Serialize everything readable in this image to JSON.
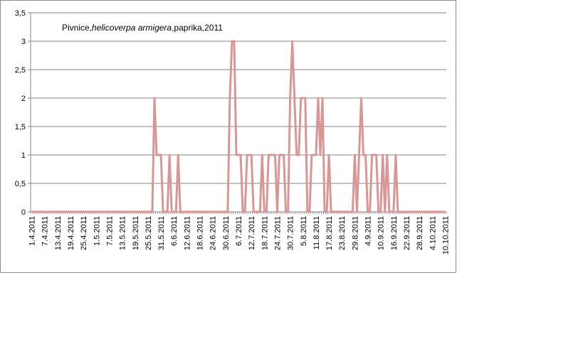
{
  "chart_data": {
    "type": "line",
    "title_parts": [
      "Pivnice,",
      "helicoverpa armigera",
      ",paprika,2011"
    ],
    "xlabel": "",
    "ylabel": "",
    "ylim": [
      0,
      3.5
    ],
    "y_ticks": [
      "0",
      "0,5",
      "1",
      "1,5",
      "2",
      "2,5",
      "3",
      "3,5"
    ],
    "x_tick_labels": [
      "1.4.2011",
      "7.4.2011",
      "13.4.2011",
      "19.4.2011",
      "25.4.2011",
      "1.5.2011",
      "7.5.2011",
      "13.5.2011",
      "19.5.2011",
      "25.5.2011",
      "31.5.2011",
      "6.6.2011",
      "12.6.2011",
      "18.6.2011",
      "24.6.2011",
      "30.6.2011",
      "6.7.2011",
      "12.7.2011",
      "18.7.2011",
      "24.7.2011",
      "30.7.2011",
      "5.8.2011",
      "11.8.2011",
      "17.8.2011",
      "23.8.2011",
      "29.8.2011",
      "4.9.2011",
      "10.9.2011",
      "16.9.2011",
      "22.9.2011",
      "28.9.2011",
      "4.10.2011",
      "10.10.2011"
    ],
    "x_start": "1.4.2011",
    "x_end": "10.10.2011",
    "grid": true,
    "colors": {
      "series": "#d99694",
      "grid": "#868686",
      "axis": "#868686"
    },
    "series": [
      {
        "x": [
          "27.5.2011",
          "28.5.2011",
          "29.5.2011",
          "30.5.2011",
          "31.5.2011",
          "1.6.2011",
          "2.6.2011",
          "3.6.2011",
          "4.6.2011",
          "5.6.2011",
          "6.6.2011",
          "7.6.2011",
          "8.6.2011",
          "9.6.2011",
          "10.6.2011",
          "11.6.2011",
          "12.6.2011",
          "1.7.2011",
          "2.7.2011",
          "3.7.2011",
          "4.7.2011",
          "5.7.2011",
          "6.7.2011",
          "7.7.2011",
          "8.7.2011",
          "9.7.2011",
          "10.7.2011",
          "11.7.2011",
          "12.7.2011",
          "13.7.2011",
          "14.7.2011",
          "15.7.2011",
          "16.7.2011",
          "17.7.2011",
          "18.7.2011",
          "19.7.2011",
          "20.7.2011",
          "21.7.2011",
          "22.7.2011",
          "23.7.2011",
          "24.7.2011",
          "25.7.2011",
          "26.7.2011",
          "27.7.2011",
          "28.7.2011",
          "29.7.2011",
          "30.7.2011",
          "31.7.2011",
          "1.8.2011",
          "2.8.2011",
          "3.8.2011",
          "4.8.2011",
          "5.8.2011",
          "6.8.2011",
          "7.8.2011",
          "8.8.2011",
          "9.8.2011",
          "10.8.2011",
          "11.8.2011",
          "12.8.2011",
          "13.8.2011",
          "14.8.2011",
          "15.8.2011",
          "16.8.2011",
          "17.8.2011",
          "28.8.2011",
          "29.8.2011",
          "30.8.2011",
          "31.8.2011",
          "1.9.2011",
          "2.9.2011",
          "3.9.2011",
          "4.9.2011",
          "5.9.2011",
          "6.9.2011",
          "7.9.2011",
          "8.9.2011",
          "9.9.2011",
          "10.9.2011",
          "11.9.2011",
          "12.9.2011",
          "13.9.2011",
          "14.9.2011",
          "15.9.2011",
          "16.9.2011",
          "17.9.2011",
          "18.9.2011",
          "19.9.2011"
        ],
        "values": [
          0,
          2,
          1,
          1,
          1,
          0,
          0,
          0,
          1,
          0,
          0,
          0,
          1,
          0,
          0,
          0,
          0,
          0,
          2,
          3,
          3,
          1,
          1,
          1,
          0,
          0,
          1,
          1,
          1,
          0,
          0,
          0,
          0,
          1,
          0,
          0,
          1,
          1,
          1,
          1,
          0,
          1,
          1,
          1,
          0,
          0,
          2,
          3,
          2,
          1,
          1,
          2,
          2,
          2,
          0,
          0,
          1,
          1,
          1,
          2,
          1,
          2,
          0,
          0,
          1,
          0,
          1,
          0,
          1,
          2,
          1,
          1,
          0,
          0,
          1,
          1,
          1,
          0,
          0,
          1,
          0,
          1,
          0,
          0,
          0,
          1,
          0,
          0
        ]
      }
    ]
  }
}
